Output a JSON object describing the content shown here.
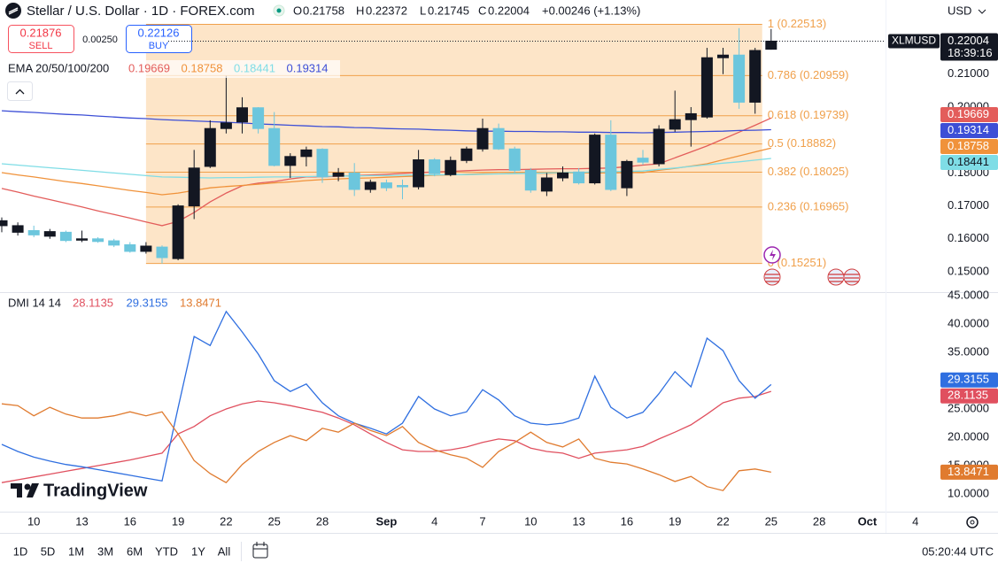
{
  "header": {
    "title": "Stellar / U.S. Dollar · 1D · FOREX.com",
    "ohlc_labels": [
      "O",
      "H",
      "L",
      "C"
    ],
    "change": "+0.00246 (+1.13%)",
    "currency": "USD",
    "sell_price": "0.21876",
    "sell": "SELL",
    "spread": "0.00250",
    "buy_price": "0.22126",
    "buy": "BUY",
    "symbol_tag": "XLMUSD",
    "countdown": "18:39:16",
    "ema_label": "EMA 20/50/100/200",
    "dmi_label": "DMI 14 14",
    "logo": "TradingView"
  },
  "footer": {
    "periods": [
      "1D",
      "5D",
      "1M",
      "3M",
      "6M",
      "YTD",
      "1Y",
      "All"
    ],
    "clock": "05:20:44 UTC"
  },
  "chart_data": [
    {
      "type": "candlestick",
      "categories": [
        null,
        null,
        "10",
        null,
        null,
        "13",
        null,
        null,
        "16",
        null,
        null,
        "19",
        null,
        null,
        "22",
        null,
        null,
        "25",
        null,
        null,
        "28",
        null,
        null,
        null,
        "Sep",
        null,
        null,
        "4",
        null,
        null,
        "7",
        null,
        null,
        "10",
        null,
        null,
        "13",
        null,
        null,
        "16",
        null,
        null,
        "19",
        null,
        null,
        "22",
        null,
        null,
        "25",
        null,
        null,
        "28",
        null,
        null,
        "Oct",
        null,
        null,
        "4"
      ],
      "ohlc": {
        "open": [
          0.164,
          0.162,
          0.1625,
          0.1608,
          0.162,
          0.1596,
          0.16,
          0.1594,
          0.1582,
          0.1562,
          0.1575,
          0.154,
          0.17,
          0.182,
          0.1935,
          0.1955,
          0.1998,
          0.1935,
          0.1823,
          0.185,
          0.1872,
          0.179,
          0.18,
          0.175,
          0.177,
          0.1762,
          0.1758,
          0.184,
          0.1795,
          0.1838,
          0.1873,
          0.1935,
          0.1873,
          0.1808,
          0.1745,
          0.1785,
          0.1803,
          0.177,
          0.1915,
          0.1755,
          0.1845,
          0.1828,
          0.1933,
          0.1962,
          0.197,
          0.215,
          0.2158,
          0.2015,
          0.21758,
          null,
          null,
          null,
          null,
          null,
          null,
          null,
          null,
          null
        ],
        "high": [
          0.1665,
          0.165,
          0.164,
          0.163,
          0.1625,
          0.1625,
          0.1605,
          0.16,
          0.159,
          0.159,
          0.158,
          0.1705,
          0.187,
          0.196,
          0.2095,
          0.203,
          0.2,
          0.1985,
          0.186,
          0.188,
          0.1875,
          0.1815,
          0.183,
          0.178,
          0.178,
          0.178,
          0.187,
          0.1845,
          0.185,
          0.188,
          0.1965,
          0.195,
          0.188,
          0.1815,
          0.18,
          0.182,
          0.1815,
          0.192,
          0.196,
          0.184,
          0.187,
          0.1945,
          0.205,
          0.2,
          0.218,
          0.218,
          0.224,
          0.218,
          0.22372,
          null,
          null,
          null,
          null,
          null,
          null,
          null,
          null,
          null
        ],
        "low": [
          0.162,
          0.161,
          0.1605,
          0.16,
          0.159,
          0.159,
          0.1588,
          0.1575,
          0.1558,
          0.1555,
          0.1525,
          0.1535,
          0.166,
          0.1815,
          0.192,
          0.192,
          0.192,
          0.182,
          0.1785,
          0.182,
          0.177,
          0.1775,
          0.173,
          0.174,
          0.1745,
          0.172,
          0.175,
          0.179,
          0.179,
          0.183,
          0.1865,
          0.187,
          0.18,
          0.174,
          0.173,
          0.1775,
          0.1765,
          0.1765,
          0.1745,
          0.173,
          0.1825,
          0.182,
          0.1925,
          0.188,
          0.1965,
          0.21,
          0.1995,
          0.198,
          0.21745,
          null,
          null,
          null,
          null,
          null,
          null,
          null,
          null,
          null
        ],
        "close": [
          0.1655,
          0.164,
          0.1612,
          0.1622,
          0.1595,
          0.16,
          0.1592,
          0.1581,
          0.1562,
          0.1578,
          0.1543,
          0.17,
          0.1815,
          0.1935,
          0.1952,
          0.1998,
          0.1935,
          0.1823,
          0.185,
          0.187,
          0.1788,
          0.18,
          0.175,
          0.1772,
          0.1755,
          0.1758,
          0.184,
          0.1798,
          0.1838,
          0.1873,
          0.1935,
          0.1873,
          0.1808,
          0.1748,
          0.1785,
          0.18,
          0.177,
          0.1915,
          0.175,
          0.1835,
          0.1833,
          0.1933,
          0.1962,
          0.198,
          0.215,
          0.2158,
          0.2015,
          0.2172,
          0.22004,
          null,
          null,
          null,
          null,
          null,
          null,
          null,
          null,
          null
        ]
      },
      "up_color": "#131722",
      "down_color": "#6cc6dd",
      "series": [
        {
          "color": "#e35d5b",
          "values": [
            0.1753,
            0.1742,
            0.173,
            0.1719,
            0.1708,
            0.1697,
            0.1685,
            0.1674,
            0.1663,
            0.1651,
            0.164,
            0.1653,
            0.168,
            0.1712,
            0.1739,
            0.1761,
            0.1769,
            0.1774,
            0.1782,
            0.1788,
            0.1788,
            0.179,
            0.1792,
            0.1794,
            0.1796,
            0.1799,
            0.1801,
            0.1803,
            0.1805,
            0.1807,
            0.1809,
            0.181,
            0.181,
            0.1811,
            0.1812,
            0.1813,
            0.1813,
            0.1814,
            0.1815,
            0.1819,
            0.1824,
            0.1828,
            0.1846,
            0.1864,
            0.1882,
            0.1903,
            0.1924,
            0.1945,
            0.19669,
            null,
            null,
            null,
            null,
            null,
            null,
            null,
            null,
            null
          ]
        },
        {
          "color": "#f0923a",
          "values": [
            0.1801,
            0.1794,
            0.1788,
            0.1781,
            0.1774,
            0.1768,
            0.1761,
            0.1754,
            0.1747,
            0.1741,
            0.1734,
            0.1739,
            0.1747,
            0.1755,
            0.1759,
            0.1762,
            0.1766,
            0.177,
            0.1773,
            0.1777,
            0.178,
            0.1782,
            0.1784,
            0.1785,
            0.1787,
            0.1789,
            0.1791,
            0.1793,
            0.1794,
            0.1796,
            0.1798,
            0.1798,
            0.1799,
            0.1799,
            0.1799,
            0.18,
            0.18,
            0.18,
            0.18,
            0.1801,
            0.1801,
            0.1808,
            0.1814,
            0.1821,
            0.1828,
            0.184,
            0.1852,
            0.1864,
            0.18758,
            null,
            null,
            null,
            null,
            null,
            null,
            null,
            null,
            null
          ]
        },
        {
          "color": "#7fdde6",
          "values": [
            0.1828,
            0.1824,
            0.182,
            0.1816,
            0.1812,
            0.1808,
            0.1804,
            0.18,
            0.1796,
            0.1792,
            0.1788,
            0.1787,
            0.1786,
            0.1785,
            0.1786,
            0.1786,
            0.1787,
            0.1788,
            0.1788,
            0.1789,
            0.179,
            0.1791,
            0.1791,
            0.1792,
            0.1792,
            0.1793,
            0.1794,
            0.1794,
            0.1795,
            0.1795,
            0.1796,
            0.1797,
            0.1798,
            0.1799,
            0.18,
            0.1801,
            0.1802,
            0.1803,
            0.1804,
            0.1805,
            0.1806,
            0.1811,
            0.1815,
            0.182,
            0.1825,
            0.183,
            0.1834,
            0.1839,
            0.18441,
            null,
            null,
            null,
            null,
            null,
            null,
            null,
            null,
            null
          ]
        },
        {
          "color": "#3d4fd6",
          "values": [
            0.1989,
            0.1986,
            0.1984,
            0.1981,
            0.1978,
            0.1976,
            0.1973,
            0.197,
            0.1967,
            0.1965,
            0.1962,
            0.196,
            0.1958,
            0.1956,
            0.1954,
            0.1952,
            0.1949,
            0.1947,
            0.1945,
            0.1943,
            0.1941,
            0.194,
            0.1938,
            0.1937,
            0.1935,
            0.1934,
            0.1933,
            0.1931,
            0.193,
            0.1928,
            0.1927,
            0.1927,
            0.1926,
            0.1926,
            0.1925,
            0.1925,
            0.1924,
            0.1924,
            0.1923,
            0.1923,
            0.1922,
            0.1923,
            0.1924,
            0.1925,
            0.1926,
            0.1927,
            0.1929,
            0.193,
            0.19314,
            null,
            null,
            null,
            null,
            null,
            null,
            null,
            null,
            null
          ]
        }
      ],
      "fib": {
        "color": "#f0a04b",
        "fill": "#fde5c8",
        "levels": [
          {
            "value": 0.22513,
            "label": "1 (0.22513)"
          },
          {
            "value": 0.20959,
            "label": "0.786 (0.20959)"
          },
          {
            "value": 0.19739,
            "label": "0.618 (0.19739)"
          },
          {
            "value": 0.18882,
            "label": "0.5 (0.18882)"
          },
          {
            "value": 0.18025,
            "label": "0.382 (0.18025)"
          },
          {
            "value": 0.16965,
            "label": "0.236 (0.16965)"
          },
          {
            "value": 0.15251,
            "label": "0 (0.15251)"
          }
        ]
      },
      "ylim": [
        0.14382,
        0.23253
      ],
      "yticks": [
        {
          "value": 0.21,
          "label": "0.21000"
        },
        {
          "value": 0.2,
          "label": "0.20000"
        },
        {
          "value": 0.18,
          "label": "0.18000"
        },
        {
          "value": 0.17,
          "label": "0.17000"
        },
        {
          "value": 0.16,
          "label": "0.16000"
        },
        {
          "value": 0.15,
          "label": "0.15000"
        }
      ]
    },
    {
      "type": "line",
      "series": [
        {
          "color": "#e0505f",
          "values": [
            12.0,
            12.5,
            13.0,
            13.5,
            14.0,
            14.5,
            15.0,
            15.5,
            16.0,
            16.6,
            17.2,
            20.6,
            21.9,
            23.8,
            25.0,
            25.9,
            26.4,
            26.1,
            25.6,
            25.0,
            24.4,
            23.4,
            22.2,
            20.6,
            19.1,
            17.8,
            17.5,
            17.5,
            17.8,
            18.3,
            19.1,
            19.7,
            19.4,
            18.1,
            17.5,
            17.2,
            16.3,
            17.2,
            17.5,
            17.8,
            18.4,
            19.7,
            20.9,
            22.2,
            24.1,
            26.1,
            26.9,
            27.2,
            28.1135,
            null,
            null,
            null,
            null,
            null,
            null,
            null,
            null,
            null
          ]
        },
        {
          "color": "#2f6fe0",
          "values": [
            18.75,
            17.5,
            16.5,
            15.8,
            15.2,
            14.8,
            14.3,
            13.8,
            13.3,
            12.8,
            12.3,
            25.2,
            37.8,
            36.2,
            42.2,
            38.6,
            34.7,
            30.0,
            28.1,
            29.4,
            26.1,
            23.8,
            22.5,
            21.6,
            20.6,
            22.5,
            27.2,
            25.0,
            23.8,
            24.5,
            28.4,
            26.6,
            23.8,
            22.5,
            22.2,
            22.5,
            23.4,
            30.8,
            25.3,
            23.4,
            24.4,
            27.7,
            31.6,
            28.9,
            37.5,
            35.3,
            30.0,
            26.9,
            29.3155,
            null,
            null,
            null,
            null,
            null,
            null,
            null,
            null,
            null
          ]
        },
        {
          "color": "#e07b2f",
          "values": [
            25.9,
            25.6,
            23.8,
            25.3,
            24.1,
            23.4,
            23.4,
            23.8,
            24.5,
            23.8,
            24.5,
            20.6,
            15.9,
            13.6,
            12.0,
            15.2,
            17.5,
            19.1,
            20.3,
            19.4,
            21.6,
            20.9,
            22.5,
            21.2,
            20.3,
            21.9,
            19.1,
            17.8,
            16.9,
            16.3,
            14.7,
            17.5,
            19.1,
            20.9,
            19.1,
            18.3,
            19.7,
            16.3,
            15.6,
            15.3,
            14.4,
            13.4,
            12.2,
            13.1,
            11.3,
            10.6,
            14.1,
            14.4,
            13.8471,
            null,
            null,
            null,
            null,
            null,
            null,
            null,
            null,
            null
          ]
        }
      ],
      "ylim": [
        6.875,
        45.625
      ],
      "yticks": [
        {
          "value": 45,
          "label": "45.0000"
        },
        {
          "value": 40,
          "label": "40.0000"
        },
        {
          "value": 35,
          "label": "35.0000"
        },
        {
          "value": 25,
          "label": "25.0000"
        },
        {
          "value": 20,
          "label": "20.0000"
        },
        {
          "value": 15,
          "label": "15.0000"
        },
        {
          "value": 10,
          "label": "10.0000"
        }
      ]
    }
  ]
}
